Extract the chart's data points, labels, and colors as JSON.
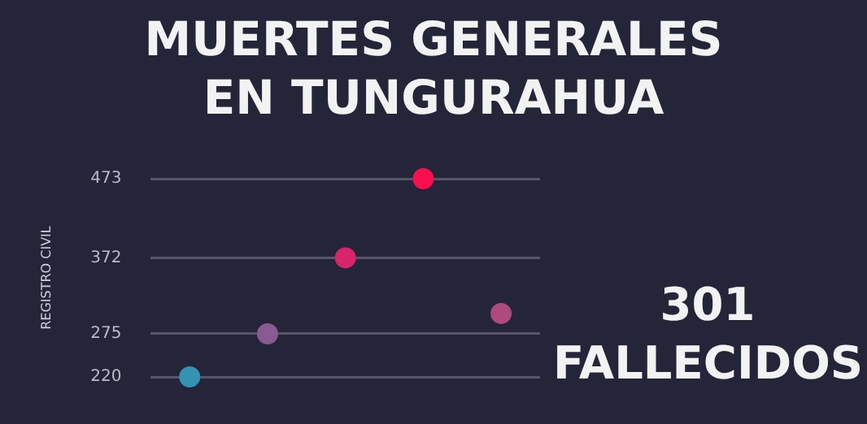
{
  "chart_data": {
    "type": "scatter",
    "title": "MUERTES GENERALES EN TUNGURAHUA",
    "ylabel": "REGISTRO CIVIL",
    "categories": [
      null,
      null,
      null,
      null,
      null
    ],
    "values": [
      220,
      275,
      372,
      473,
      301
    ],
    "colors": [
      "#3393b0",
      "#8a5a92",
      "#d8246a",
      "#f8104e",
      "#ad4a7e"
    ],
    "ylim": [
      220,
      473
    ],
    "yticks": [
      220,
      275,
      372,
      473
    ],
    "grid": "y",
    "marker": "circle",
    "annotations": [
      "301 FALLECIDOS"
    ]
  }
}
